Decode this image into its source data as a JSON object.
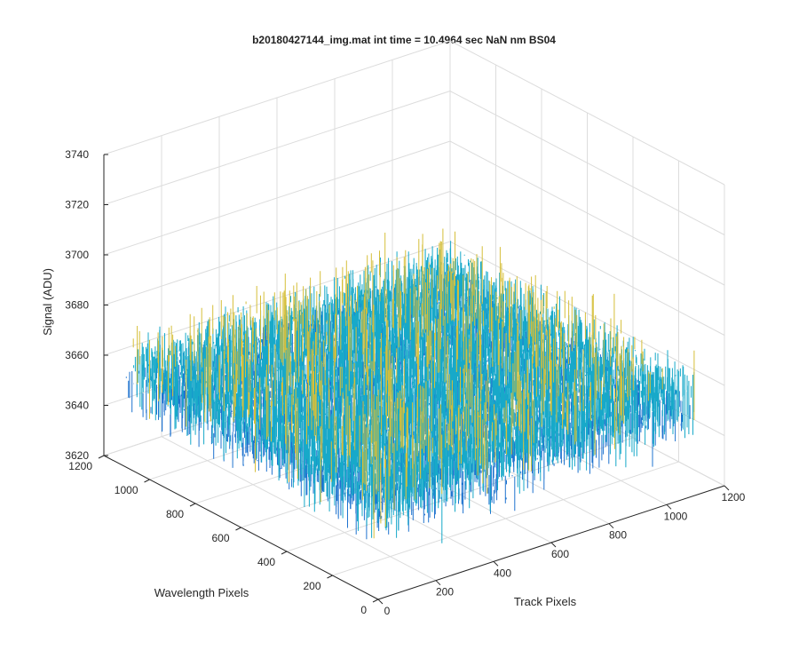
{
  "chart_data": {
    "type": "surface",
    "title": "b20180427144_img.mat int time = 10.4964 sec  NaN nm BS04",
    "xlabel": "Track Pixels",
    "ylabel": "Wavelength Pixels",
    "zlabel": "Signal (ADU)",
    "xlim": [
      0,
      1200
    ],
    "ylim": [
      0,
      1200
    ],
    "zlim": [
      3620,
      3740
    ],
    "x_ticks": [
      "0",
      "200",
      "400",
      "600",
      "800",
      "1000",
      "1200"
    ],
    "y_ticks": [
      "0",
      "200",
      "400",
      "600",
      "800",
      "1000",
      "1200"
    ],
    "z_ticks": [
      "3620",
      "3640",
      "3660",
      "3680",
      "3700",
      "3720",
      "3740"
    ],
    "grid": true,
    "surface": {
      "x_range": [
        0,
        1100
      ],
      "y_range": [
        0,
        1100
      ],
      "mean": 3658,
      "noise_min": 3625,
      "noise_max": 3722
    },
    "colors": {
      "low": "#1f73cf",
      "mid": "#17a9c9",
      "high": "#d6bf3a",
      "axis": "#262626",
      "grid": "#dcdcdc"
    }
  }
}
